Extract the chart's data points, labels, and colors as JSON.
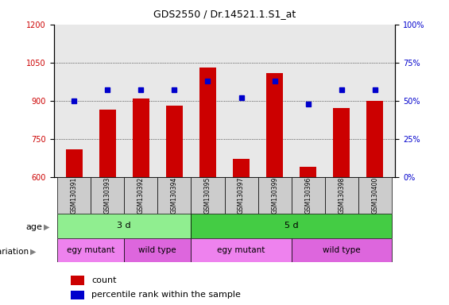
{
  "title": "GDS2550 / Dr.14521.1.S1_at",
  "samples": [
    "GSM130391",
    "GSM130393",
    "GSM130392",
    "GSM130394",
    "GSM130395",
    "GSM130397",
    "GSM130399",
    "GSM130396",
    "GSM130398",
    "GSM130400"
  ],
  "counts": [
    710,
    865,
    910,
    880,
    1030,
    670,
    1010,
    640,
    870,
    900
  ],
  "percentile_ranks": [
    50,
    57,
    57,
    57,
    63,
    52,
    63,
    48,
    57,
    57
  ],
  "ylim_left": [
    600,
    1200
  ],
  "ylim_right": [
    0,
    100
  ],
  "yticks_left": [
    600,
    750,
    900,
    1050,
    1200
  ],
  "yticks_right": [
    0,
    25,
    50,
    75,
    100
  ],
  "bar_color": "#cc0000",
  "dot_color": "#0000cc",
  "bar_bottom": 600,
  "age_groups": [
    {
      "label": "3 d",
      "start": 0,
      "end": 4,
      "color": "#90ee90"
    },
    {
      "label": "5 d",
      "start": 4,
      "end": 10,
      "color": "#44cc44"
    }
  ],
  "genotype_groups": [
    {
      "label": "egy mutant",
      "start": 0,
      "end": 2,
      "color": "#ee82ee"
    },
    {
      "label": "wild type",
      "start": 2,
      "end": 4,
      "color": "#dd66dd"
    },
    {
      "label": "egy mutant",
      "start": 4,
      "end": 7,
      "color": "#ee82ee"
    },
    {
      "label": "wild type",
      "start": 7,
      "end": 10,
      "color": "#dd66dd"
    }
  ],
  "legend_items": [
    {
      "label": "count",
      "color": "#cc0000"
    },
    {
      "label": "percentile rank within the sample",
      "color": "#0000cc"
    }
  ],
  "tick_label_fontsize": 7,
  "axis_label_fontsize": 8,
  "background_color": "#ffffff",
  "plot_bg_color": "#e8e8e8"
}
